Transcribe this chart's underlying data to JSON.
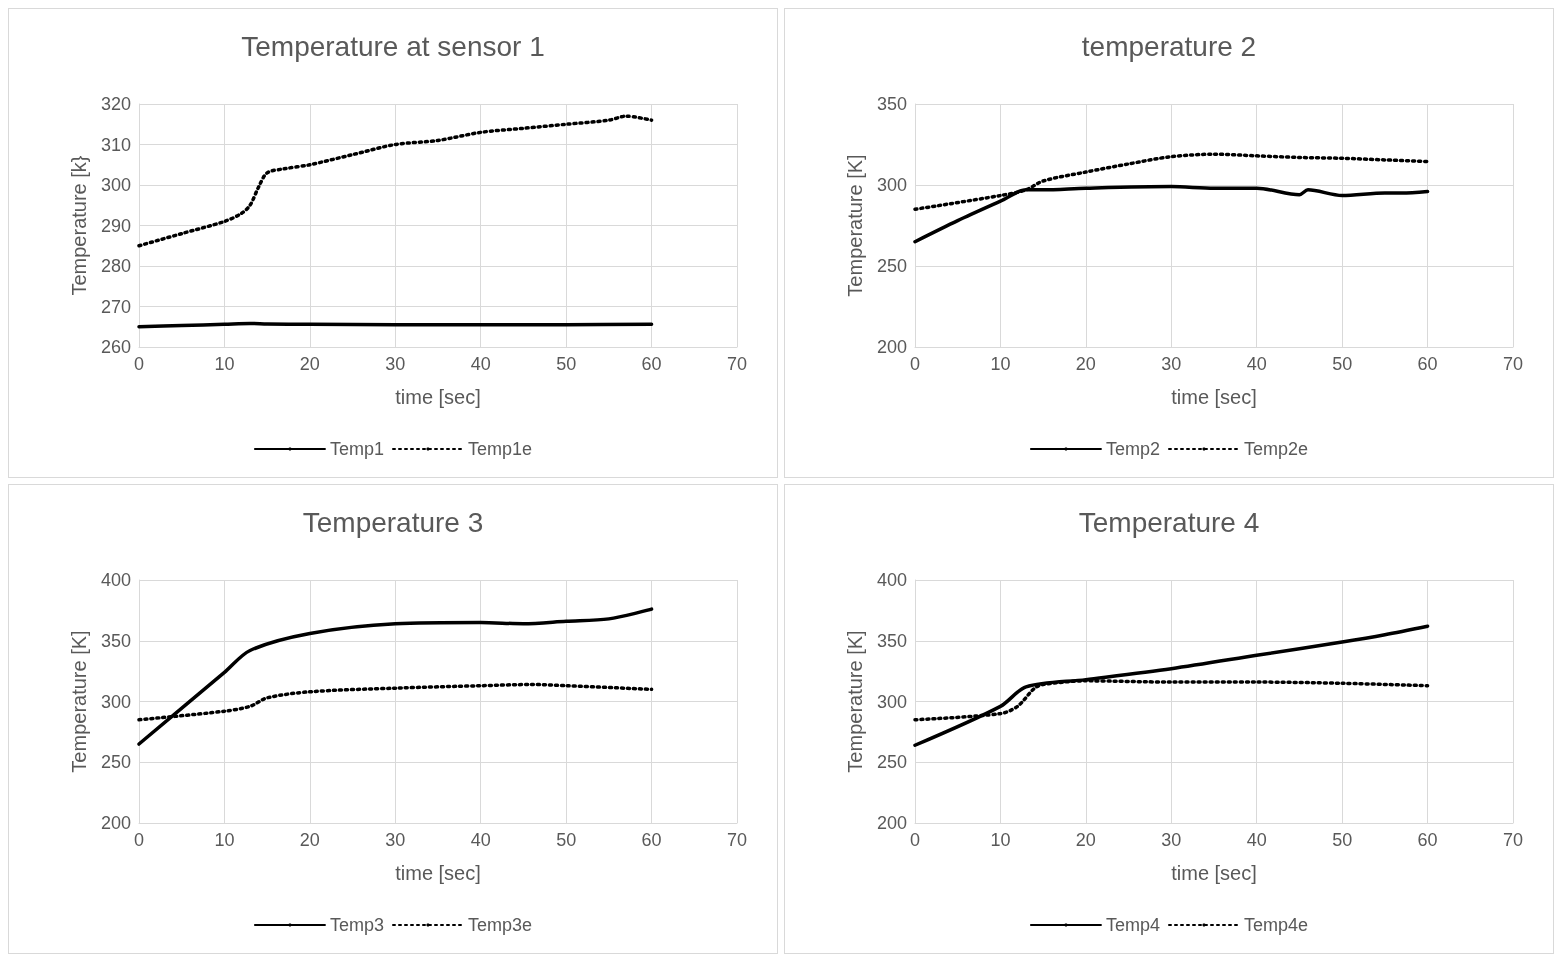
{
  "chart_data": [
    {
      "type": "line",
      "title": "Temperature at sensor 1",
      "xlabel": "time [sec]",
      "ylabel": "Temperature [k}",
      "xlim": [
        0,
        70
      ],
      "xticks": [
        0,
        10,
        20,
        30,
        40,
        50,
        60,
        70
      ],
      "ylim": [
        260,
        320
      ],
      "yticks": [
        260,
        270,
        280,
        290,
        300,
        310,
        320
      ],
      "grid": true,
      "legend": "bottom",
      "marker": "none",
      "series": [
        {
          "name": "Temp1",
          "color": "#000000",
          "line_style": "solid",
          "x": [
            0,
            5,
            10,
            13,
            15,
            20,
            30,
            40,
            50,
            60
          ],
          "values": [
            265,
            265.3,
            265.6,
            265.8,
            265.7,
            265.6,
            265.5,
            265.5,
            265.5,
            265.6
          ]
        },
        {
          "name": "Temp1e",
          "color": "#000000",
          "line_style": "dotted",
          "x": [
            0,
            5,
            10,
            12,
            13,
            14,
            15,
            17,
            20,
            25,
            30,
            35,
            40,
            45,
            50,
            55,
            57,
            60
          ],
          "values": [
            285,
            288,
            291,
            293,
            295,
            299.5,
            303,
            304,
            305,
            307.5,
            310,
            311,
            313,
            314,
            315,
            316,
            317,
            316
          ]
        }
      ]
    },
    {
      "type": "line",
      "title": "temperature 2",
      "xlabel": "time [sec]",
      "ylabel": "Temperature [K]",
      "xlim": [
        0,
        70
      ],
      "xticks": [
        0,
        10,
        20,
        30,
        40,
        50,
        60,
        70
      ],
      "ylim": [
        200,
        350
      ],
      "yticks": [
        200,
        250,
        300,
        350
      ],
      "grid": true,
      "legend": "bottom",
      "marker": "none",
      "series": [
        {
          "name": "Temp2",
          "color": "#000000",
          "line_style": "solid",
          "x": [
            0,
            5,
            10,
            13,
            15,
            20,
            30,
            35,
            40,
            45,
            46,
            50,
            55,
            57,
            60
          ],
          "values": [
            265,
            278,
            290,
            297,
            297,
            298,
            299,
            298,
            298,
            294,
            297,
            293.5,
            295,
            295,
            296
          ]
        },
        {
          "name": "Temp2e",
          "color": "#000000",
          "line_style": "dotted",
          "x": [
            0,
            10,
            13,
            15,
            20,
            25,
            30,
            35,
            40,
            45,
            50,
            55,
            60
          ],
          "values": [
            285,
            293.5,
            297,
            302.5,
            308,
            313,
            317.5,
            319,
            318,
            317,
            316.5,
            315.5,
            314.5
          ]
        }
      ]
    },
    {
      "type": "line",
      "title": "Temperature 3",
      "xlabel": "time [sec]",
      "ylabel": "Temperature [K]",
      "xlim": [
        0,
        70
      ],
      "xticks": [
        0,
        10,
        20,
        30,
        40,
        50,
        60,
        70
      ],
      "ylim": [
        200,
        400
      ],
      "yticks": [
        200,
        250,
        300,
        350,
        400
      ],
      "grid": true,
      "legend": "bottom",
      "marker": "none",
      "series": [
        {
          "name": "Temp3",
          "color": "#000000",
          "line_style": "solid",
          "x": [
            0,
            10,
            13,
            20,
            30,
            40,
            45,
            50,
            55,
            60
          ],
          "values": [
            265,
            324,
            342,
            356,
            364,
            365,
            364,
            366,
            368,
            376
          ]
        },
        {
          "name": "Temp3e",
          "color": "#000000",
          "line_style": "dotted",
          "x": [
            0,
            10,
            13,
            15,
            20,
            30,
            40,
            46,
            50,
            60
          ],
          "values": [
            285,
            292,
            296,
            303,
            308,
            311,
            313,
            314,
            313,
            310
          ]
        }
      ]
    },
    {
      "type": "line",
      "title": "Temperature 4",
      "xlabel": "time [sec]",
      "ylabel": "Temperature [K]",
      "xlim": [
        0,
        70
      ],
      "xticks": [
        0,
        10,
        20,
        30,
        40,
        50,
        60,
        70
      ],
      "ylim": [
        200,
        400
      ],
      "yticks": [
        200,
        250,
        300,
        350,
        400
      ],
      "grid": true,
      "legend": "bottom",
      "marker": "none",
      "series": [
        {
          "name": "Temp4",
          "color": "#000000",
          "line_style": "solid",
          "x": [
            0,
            10,
            13,
            20,
            30,
            40,
            50,
            55,
            60
          ],
          "values": [
            264,
            296,
            312,
            318,
            327,
            338,
            349,
            355,
            362
          ]
        },
        {
          "name": "Temp4e",
          "color": "#000000",
          "line_style": "dotted",
          "x": [
            0,
            10,
            12,
            14,
            15,
            20,
            30,
            40,
            50,
            60
          ],
          "values": [
            285,
            290,
            296,
            311,
            314,
            317,
            316,
            316,
            315,
            313
          ]
        }
      ]
    }
  ]
}
